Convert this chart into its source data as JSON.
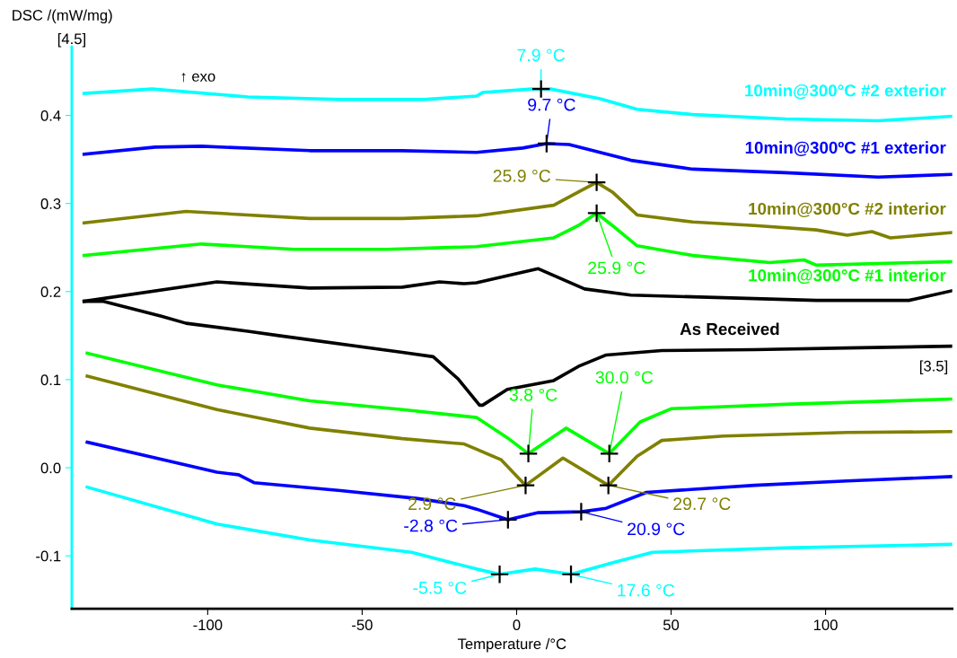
{
  "chart_data": {
    "type": "line",
    "xlabel": "Temperature /°C",
    "ylabel": "DSC /(mW/mg)",
    "xlim": [
      -144,
      141
    ],
    "ylim": [
      -0.16,
      0.478
    ],
    "xticks": [
      -100,
      -50,
      0,
      50,
      100
    ],
    "yticks": [
      {
        "value": -0.1,
        "label": "-0.1"
      },
      {
        "value": 0,
        "label": "0.0"
      },
      {
        "value": 0.1,
        "label": "0.1"
      },
      {
        "value": 0.2,
        "label": "0.2"
      },
      {
        "value": 0.3,
        "label": "0.3"
      },
      {
        "value": 0.4,
        "label": "0.4"
      }
    ],
    "grid": false,
    "legend": false,
    "marker": "none",
    "line_style": "solid",
    "series": [
      {
        "name": "10min@300°C #2 exterior",
        "color": "#00ffff",
        "x": [
          -140,
          -118,
          -87,
          -57,
          -30,
          -13,
          -11,
          5,
          7.9,
          11,
          27,
          39,
          57,
          87,
          117,
          141
        ],
        "values": [
          0.425,
          0.43,
          0.421,
          0.418,
          0.418,
          0.422,
          0.426,
          0.43,
          0.43,
          0.43,
          0.419,
          0.407,
          0.401,
          0.396,
          0.394,
          0.399
        ]
      },
      {
        "name": "10min@300ºC #1 exterior",
        "color": "#0000ff",
        "x": [
          -140,
          -117,
          -102,
          -67,
          -37,
          -13,
          2,
          9.7,
          17,
          37,
          57,
          87,
          117,
          141
        ],
        "values": [
          0.356,
          0.364,
          0.365,
          0.36,
          0.36,
          0.358,
          0.363,
          0.368,
          0.367,
          0.349,
          0.339,
          0.335,
          0.33,
          0.333
        ]
      },
      {
        "name": "10min@300°C #2 interior",
        "color": "#808000",
        "x": [
          -140,
          -107,
          -67,
          -37,
          -13,
          12,
          20,
          25.9,
          31,
          39,
          57,
          77,
          97,
          107,
          115,
          121,
          141
        ],
        "values": [
          0.278,
          0.291,
          0.283,
          0.283,
          0.286,
          0.298,
          0.313,
          0.324,
          0.313,
          0.287,
          0.279,
          0.275,
          0.27,
          0.264,
          0.268,
          0.261,
          0.267
        ]
      },
      {
        "name": "10min@300°C #1 interior",
        "color": "#00ff00",
        "x": [
          -140,
          -102,
          -72,
          -42,
          -13,
          12,
          20,
          25.9,
          31,
          39,
          57,
          82,
          93,
          97,
          141
        ],
        "values": [
          0.241,
          0.254,
          0.248,
          0.248,
          0.251,
          0.261,
          0.275,
          0.289,
          0.275,
          0.252,
          0.241,
          0.233,
          0.236,
          0.23,
          0.234
        ]
      },
      {
        "name": "As Received",
        "color": "#000000",
        "x": [
          -140,
          -97,
          -67,
          -37,
          -25,
          -17,
          -13,
          7,
          22,
          37,
          67,
          97,
          127,
          141
        ],
        "values": [
          0.189,
          0.211,
          0.204,
          0.205,
          0.211,
          0.209,
          0.21,
          0.226,
          0.203,
          0.196,
          0.193,
          0.19,
          0.19,
          0.201
        ]
      },
      {
        "color": "#000000",
        "x": [
          -140,
          -134,
          -115,
          -107,
          -87,
          -77,
          -37,
          -27,
          -19,
          -12,
          -11,
          -3,
          12,
          20,
          29,
          47,
          77,
          107,
          141
        ],
        "values": [
          0.189,
          0.189,
          0.172,
          0.164,
          0.155,
          0.15,
          0.131,
          0.126,
          0.101,
          0.071,
          0.071,
          0.089,
          0.099,
          0.115,
          0.128,
          0.133,
          0.134,
          0.136,
          0.138
        ]
      },
      {
        "color": "#00ff00",
        "x": [
          -139,
          -97,
          -67,
          -37,
          -13,
          -3,
          3.8,
          16,
          30.0,
          40,
          50,
          87,
          141
        ],
        "values": [
          0.13,
          0.094,
          0.076,
          0.066,
          0.057,
          0.034,
          0.016,
          0.045,
          0.016,
          0.052,
          0.067,
          0.072,
          0.078
        ]
      },
      {
        "color": "#808000",
        "x": [
          -139,
          -97,
          -67,
          -37,
          -17,
          -13,
          -5,
          2.9,
          15,
          29.7,
          39,
          47,
          67,
          107,
          141
        ],
        "values": [
          0.104,
          0.066,
          0.045,
          0.033,
          0.027,
          0.021,
          0.009,
          -0.02,
          0.011,
          -0.02,
          0.013,
          0.031,
          0.036,
          0.04,
          0.041
        ]
      },
      {
        "color": "#0000ff",
        "x": [
          -139,
          -97,
          -90,
          -85,
          -57,
          -32,
          -17,
          -13,
          -2.8,
          7,
          20.9,
          29,
          42,
          77,
          107,
          141
        ],
        "values": [
          0.029,
          -0.005,
          -0.008,
          -0.017,
          -0.026,
          -0.035,
          -0.043,
          -0.047,
          -0.059,
          -0.051,
          -0.05,
          -0.046,
          -0.028,
          -0.02,
          -0.015,
          -0.01
        ]
      },
      {
        "color": "#00ffff",
        "x": [
          -139,
          -97,
          -67,
          -34,
          -13,
          -5.5,
          6,
          17.6,
          32,
          44,
          87,
          141
        ],
        "values": [
          -0.022,
          -0.064,
          -0.082,
          -0.096,
          -0.115,
          -0.121,
          -0.115,
          -0.121,
          -0.107,
          -0.096,
          -0.091,
          -0.087
        ]
      }
    ],
    "annotations": [
      "↑ exo",
      "[4.5]",
      "[3.5]",
      {
        "text": "7.9 °C",
        "x": 7.9,
        "y": 0.43
      },
      {
        "text": "9.7 °C",
        "x": 9.7,
        "y": 0.368
      },
      {
        "text": "25.9 °C",
        "x": 25.9,
        "y": 0.324
      },
      {
        "text": "25.9 °C",
        "x": 25.9,
        "y": 0.289
      },
      {
        "text": "3.8 °C",
        "x": 3.8,
        "y": 0.016
      },
      {
        "text": "30.0 °C",
        "x": 30.0,
        "y": 0.016
      },
      {
        "text": "2.9 °C",
        "x": 2.9,
        "y": -0.02
      },
      {
        "text": "29.7 °C",
        "x": 29.7,
        "y": -0.02
      },
      {
        "text": "-2.8 °C",
        "x": -2.8,
        "y": -0.059
      },
      {
        "text": "20.9 °C",
        "x": 20.9,
        "y": -0.05
      },
      {
        "text": "-5.5 °C",
        "x": -5.5,
        "y": -0.121
      },
      {
        "text": "17.6 °C",
        "x": 17.6,
        "y": -0.121
      }
    ]
  }
}
